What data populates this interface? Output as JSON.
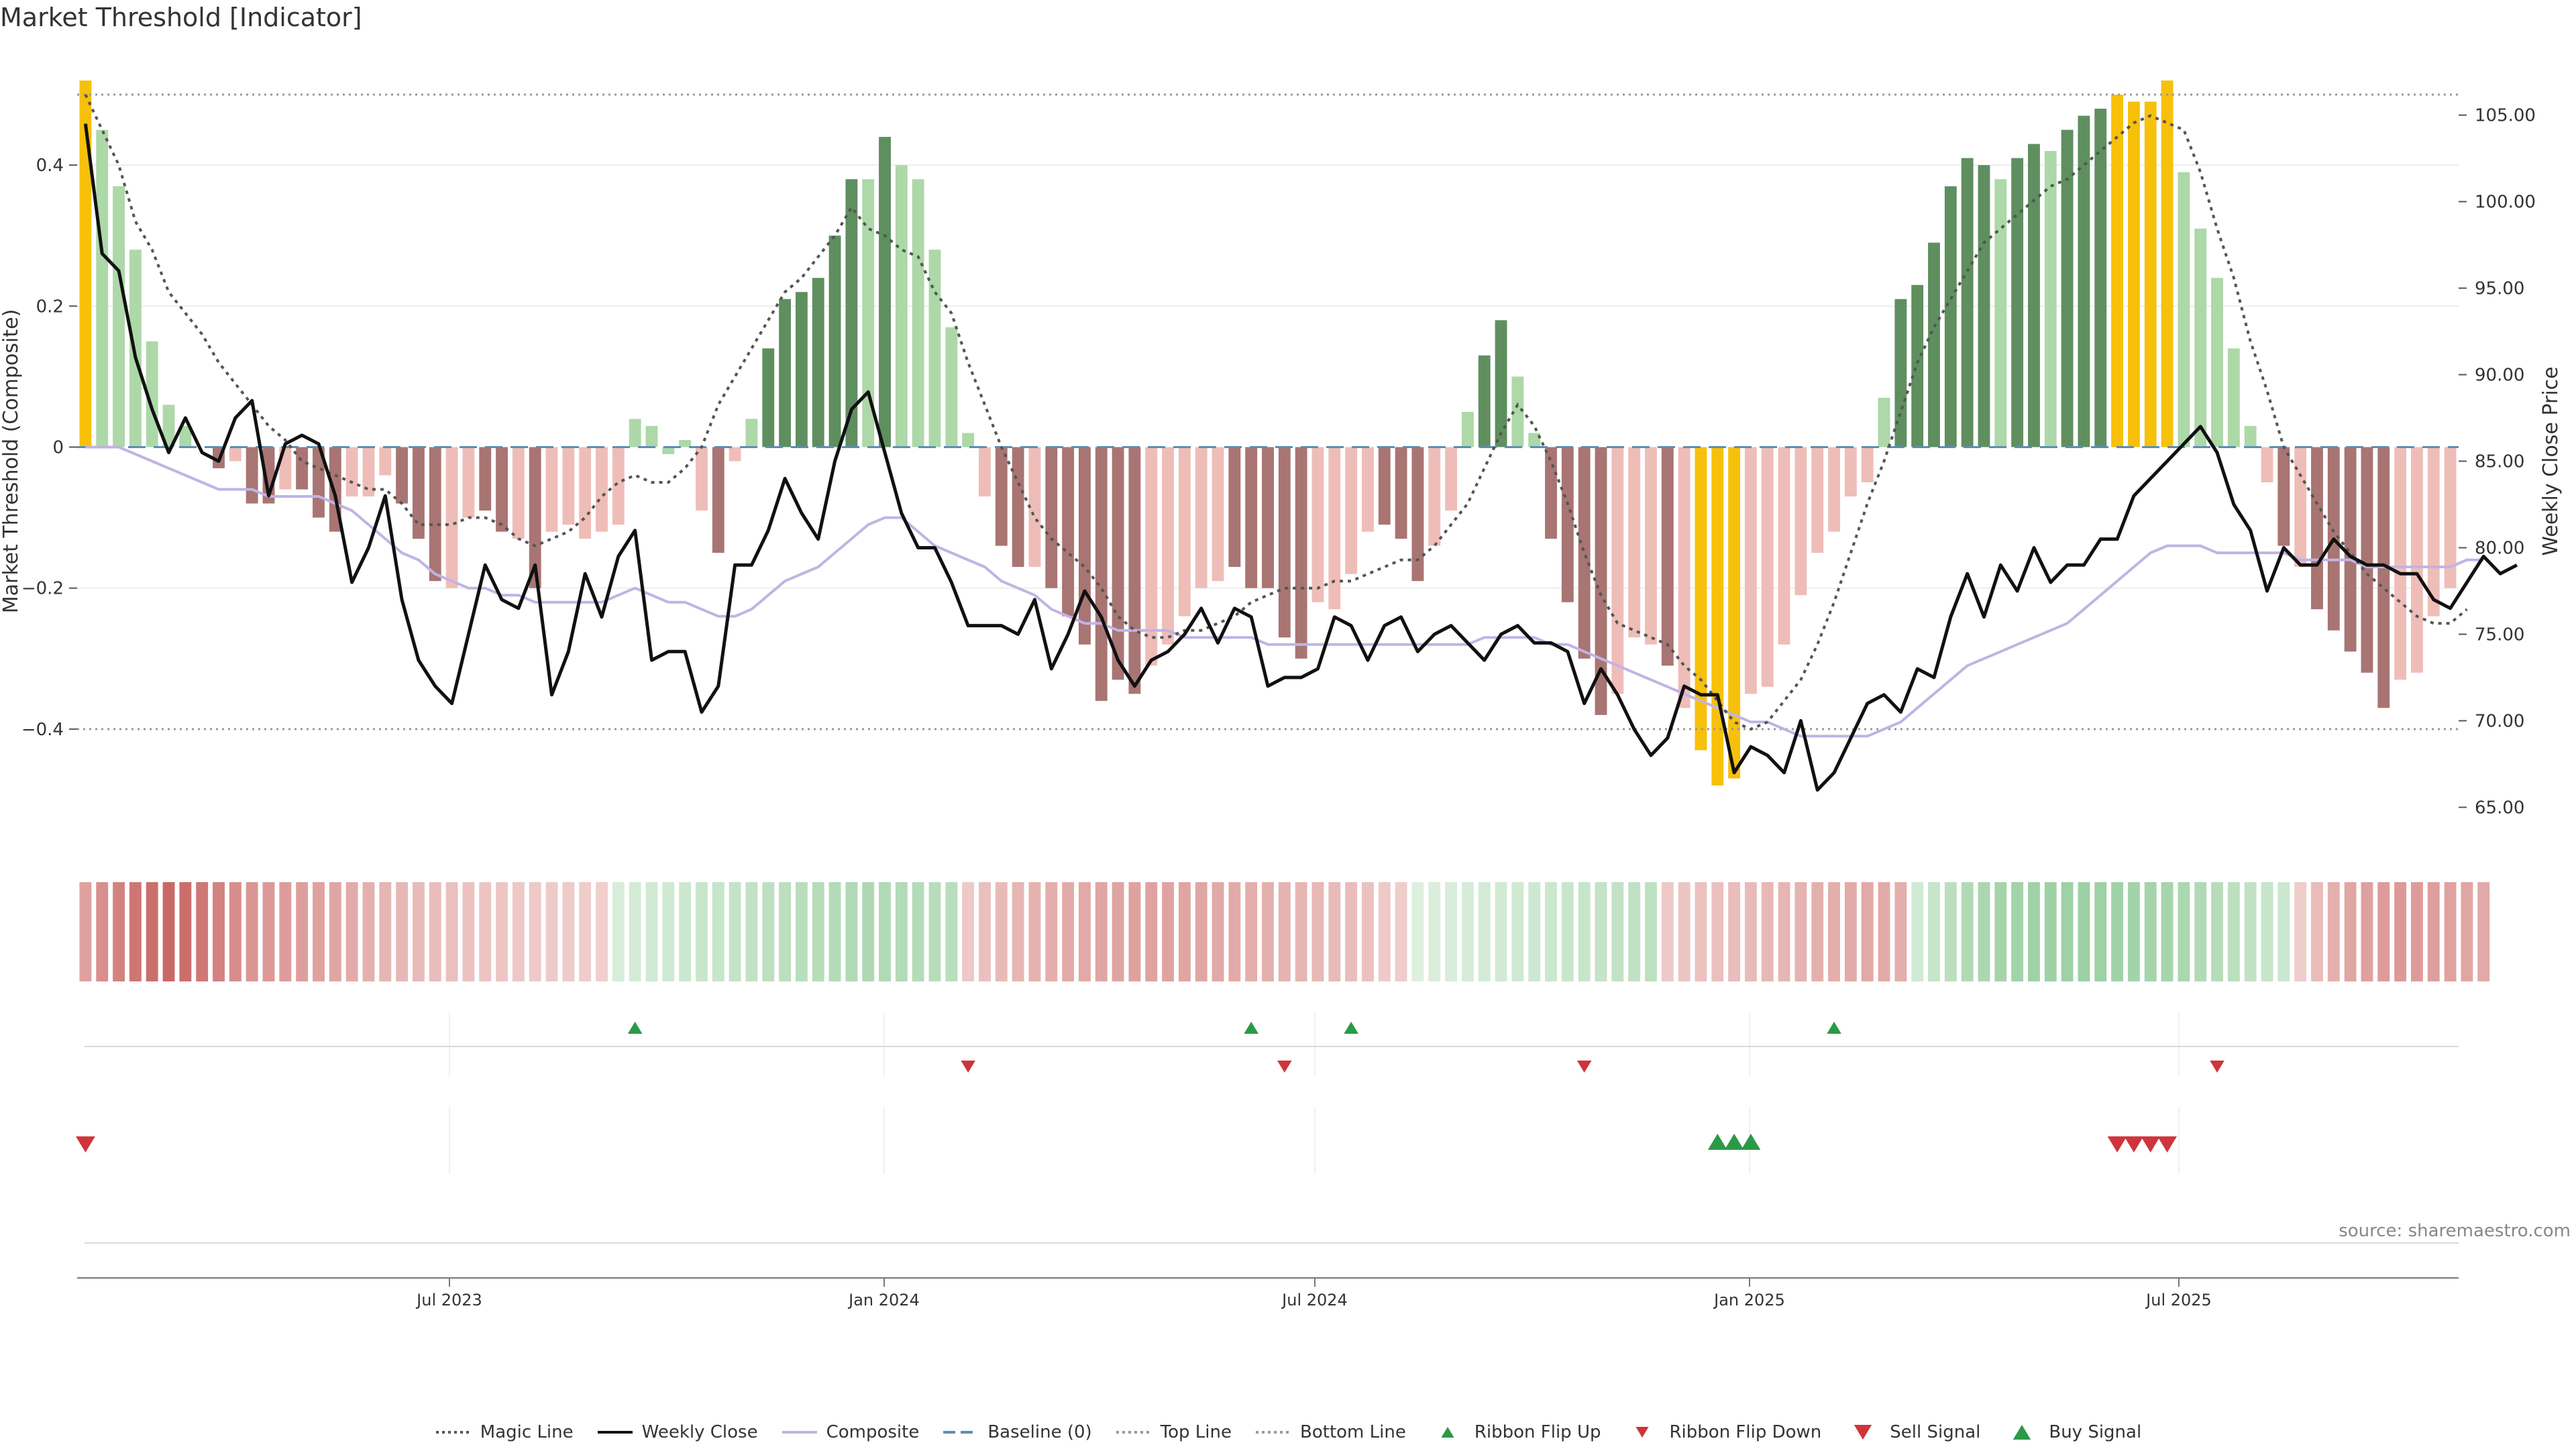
{
  "title": "Market Threshold [Indicator]",
  "source": "source: sharemaestro.com",
  "colors": {
    "bull_strong": "#5f8f5f",
    "bull_light": "#add8a8",
    "bear_strong": "#a87573",
    "bear_light": "#efbdb8",
    "extreme": "#f7c00a",
    "weekly_close": "#111111",
    "composite": "#c1b3e4",
    "magic": "#555555",
    "baseline": "#5a8fb5",
    "threshold_line": "#999999",
    "buy": "#2a9a45",
    "sell": "#d0343b"
  },
  "chart_data": {
    "type": "bar",
    "title": "Market Threshold [Indicator]",
    "ylabel": "Market Threshold (Composite)",
    "y2label": "Weekly Close Price",
    "ylim": [
      -0.56,
      0.52
    ],
    "y2lim": [
      63.0,
      107.0
    ],
    "yticks": [
      "0.4",
      "0.2",
      "0",
      "−0.2",
      "−0.4"
    ],
    "y2ticks": [
      "105.00",
      "100.00",
      "95.00",
      "90.00",
      "85.00",
      "80.00",
      "75.00",
      "70.00",
      "65.00"
    ],
    "xticks": [
      "Jul 2023",
      "Jan 2024",
      "Jul 2024",
      "Jan 2025",
      "Jul 2025"
    ],
    "top_line": 0.5,
    "bottom_line": -0.4,
    "composite_bars": [
      0.52,
      0.45,
      0.37,
      0.28,
      0.15,
      0.06,
      0.03,
      0,
      -0.03,
      -0.02,
      -0.08,
      -0.08,
      -0.06,
      -0.06,
      -0.1,
      -0.12,
      -0.07,
      -0.07,
      -0.04,
      -0.08,
      -0.13,
      -0.19,
      -0.2,
      -0.1,
      -0.09,
      -0.12,
      -0.13,
      -0.2,
      -0.12,
      -0.11,
      -0.13,
      -0.12,
      -0.11,
      0.04,
      0.03,
      -0.01,
      0.01,
      -0.09,
      -0.15,
      -0.02,
      0.04,
      0.14,
      0.21,
      0.22,
      0.24,
      0.3,
      0.38,
      0.38,
      0.44,
      0.4,
      0.38,
      0.28,
      0.17,
      0.02,
      -0.07,
      -0.14,
      -0.17,
      -0.17,
      -0.2,
      -0.24,
      -0.28,
      -0.36,
      -0.33,
      -0.35,
      -0.31,
      -0.28,
      -0.24,
      -0.2,
      -0.19,
      -0.17,
      -0.2,
      -0.2,
      -0.27,
      -0.3,
      -0.22,
      -0.23,
      -0.18,
      -0.12,
      -0.11,
      -0.13,
      -0.19,
      -0.14,
      -0.09,
      0.05,
      0.13,
      0.18,
      0.1,
      0.02,
      -0.13,
      -0.22,
      -0.3,
      -0.38,
      -0.35,
      -0.27,
      -0.28,
      -0.31,
      -0.37,
      -0.43,
      -0.48,
      -0.47,
      -0.35,
      -0.34,
      -0.28,
      -0.21,
      -0.15,
      -0.12,
      -0.07,
      -0.05,
      0.07,
      0.21,
      0.23,
      0.29,
      0.37,
      0.41,
      0.4,
      0.38,
      0.41,
      0.43,
      0.42,
      0.45,
      0.47,
      0.48,
      0.5,
      0.49,
      0.49,
      0.52,
      0.39,
      0.31,
      0.24,
      0.14,
      0.03,
      -0.05,
      -0.14,
      -0.17,
      -0.23,
      -0.26,
      -0.29,
      -0.32,
      -0.37,
      -0.33,
      -0.32,
      -0.24,
      -0.2
    ],
    "bar_class": [
      "e",
      "bl",
      "bl",
      "bl",
      "bl",
      "bl",
      "bl",
      "n",
      "r",
      "rl",
      "r",
      "r",
      "rl",
      "r",
      "r",
      "r",
      "rl",
      "rl",
      "rl",
      "r",
      "r",
      "r",
      "rl",
      "rl",
      "r",
      "r",
      "rl",
      "r",
      "rl",
      "rl",
      "rl",
      "rl",
      "rl",
      "bl",
      "bl",
      "bl",
      "bl",
      "rl",
      "r",
      "rl",
      "bl",
      "b",
      "b",
      "b",
      "b",
      "b",
      "b",
      "bl",
      "b",
      "bl",
      "bl",
      "bl",
      "bl",
      "bl",
      "rl",
      "r",
      "r",
      "rl",
      "r",
      "r",
      "r",
      "r",
      "r",
      "r",
      "rl",
      "rl",
      "rl",
      "rl",
      "rl",
      "r",
      "r",
      "r",
      "r",
      "r",
      "rl",
      "rl",
      "rl",
      "rl",
      "r",
      "r",
      "r",
      "rl",
      "rl",
      "bl",
      "b",
      "b",
      "bl",
      "bl",
      "r",
      "r",
      "r",
      "r",
      "rl",
      "rl",
      "rl",
      "r",
      "rl",
      "e",
      "e",
      "e",
      "rl",
      "rl",
      "rl",
      "rl",
      "rl",
      "rl",
      "rl",
      "rl",
      "bl",
      "b",
      "b",
      "b",
      "b",
      "b",
      "b",
      "bl",
      "b",
      "b",
      "bl",
      "b",
      "b",
      "b",
      "e",
      "e",
      "e",
      "e",
      "bl",
      "bl",
      "bl",
      "bl",
      "bl",
      "rl",
      "r",
      "rl",
      "r",
      "r",
      "r",
      "r",
      "r",
      "rl",
      "rl",
      "rl",
      "rl"
    ],
    "weekly_close": [
      104.5,
      97,
      96,
      91,
      88,
      85.5,
      87.5,
      85.5,
      85,
      87.5,
      88.5,
      83,
      86,
      86.5,
      86,
      83,
      78,
      80,
      83,
      77,
      73.5,
      72,
      71,
      75,
      79,
      77,
      76.5,
      79,
      71.5,
      74,
      78.5,
      76,
      79.5,
      81,
      73.5,
      74,
      74,
      70.5,
      72,
      79,
      79,
      81,
      84,
      82,
      80.5,
      85,
      88,
      89,
      85.5,
      82,
      80,
      80,
      78,
      75.5,
      75.5,
      75.5,
      75,
      77,
      73,
      75,
      77.5,
      76,
      73.5,
      72,
      73.5,
      74,
      75,
      76.5,
      74.5,
      76.5,
      76,
      72,
      72.5,
      72.5,
      73,
      76,
      75.5,
      73.5,
      75.5,
      76,
      74,
      75,
      75.5,
      74.5,
      73.5,
      75,
      75.5,
      74.5,
      74.5,
      74,
      71,
      73,
      71.5,
      69.5,
      68,
      69,
      72,
      71.5,
      71.5,
      67,
      68.5,
      68,
      67,
      70,
      66,
      67,
      69,
      71,
      71.5,
      70.5,
      73,
      72.5,
      76,
      78.5,
      76,
      79,
      77.5,
      80,
      78,
      79,
      79,
      80.5,
      80.5,
      83,
      84,
      85,
      86,
      87,
      85.5,
      82.5,
      81,
      77.5,
      80,
      79,
      79,
      80.5,
      79.5,
      79,
      79,
      78.5,
      78.5,
      77,
      76.5,
      78,
      79.5,
      78.5,
      79
    ]
  },
  "magic_line": [
    0.5,
    0.45,
    0.4,
    0.32,
    0.28,
    0.22,
    0.19,
    0.16,
    0.12,
    0.09,
    0.06,
    0.03,
    0.01,
    -0.02,
    -0.03,
    -0.04,
    -0.05,
    -0.06,
    -0.06,
    -0.08,
    -0.11,
    -0.11,
    -0.11,
    -0.1,
    -0.1,
    -0.11,
    -0.13,
    -0.14,
    -0.13,
    -0.12,
    -0.1,
    -0.07,
    -0.05,
    -0.04,
    -0.05,
    -0.05,
    -0.03,
    0,
    0.06,
    0.1,
    0.14,
    0.18,
    0.22,
    0.24,
    0.27,
    0.3,
    0.34,
    0.31,
    0.3,
    0.28,
    0.27,
    0.22,
    0.19,
    0.12,
    0.06,
    0,
    -0.05,
    -0.1,
    -0.13,
    -0.15,
    -0.17,
    -0.2,
    -0.24,
    -0.26,
    -0.27,
    -0.27,
    -0.26,
    -0.26,
    -0.25,
    -0.24,
    -0.22,
    -0.21,
    -0.2,
    -0.2,
    -0.2,
    -0.19,
    -0.19,
    -0.18,
    -0.17,
    -0.16,
    -0.16,
    -0.14,
    -0.11,
    -0.08,
    -0.03,
    0.02,
    0.06,
    0.03,
    -0.02,
    -0.08,
    -0.15,
    -0.21,
    -0.25,
    -0.26,
    -0.27,
    -0.28,
    -0.31,
    -0.33,
    -0.36,
    -0.39,
    -0.4,
    -0.39,
    -0.36,
    -0.33,
    -0.28,
    -0.22,
    -0.15,
    -0.08,
    -0.02,
    0.05,
    0.12,
    0.17,
    0.21,
    0.25,
    0.29,
    0.31,
    0.33,
    0.35,
    0.37,
    0.38,
    0.4,
    0.42,
    0.44,
    0.46,
    0.47,
    0.46,
    0.45,
    0.39,
    0.31,
    0.24,
    0.15,
    0.08,
    0,
    -0.04,
    -0.08,
    -0.12,
    -0.15,
    -0.18,
    -0.2,
    -0.22,
    -0.24,
    -0.25,
    -0.25,
    -0.23
  ],
  "composite_line": [
    0,
    0,
    0,
    -0.01,
    -0.02,
    -0.03,
    -0.04,
    -0.05,
    -0.06,
    -0.06,
    -0.06,
    -0.07,
    -0.07,
    -0.07,
    -0.07,
    -0.08,
    -0.09,
    -0.11,
    -0.13,
    -0.15,
    -0.16,
    -0.18,
    -0.19,
    -0.2,
    -0.2,
    -0.21,
    -0.21,
    -0.22,
    -0.22,
    -0.22,
    -0.22,
    -0.22,
    -0.21,
    -0.2,
    -0.21,
    -0.22,
    -0.22,
    -0.23,
    -0.24,
    -0.24,
    -0.23,
    -0.21,
    -0.19,
    -0.18,
    -0.17,
    -0.15,
    -0.13,
    -0.11,
    -0.1,
    -0.1,
    -0.12,
    -0.14,
    -0.15,
    -0.16,
    -0.17,
    -0.19,
    -0.2,
    -0.21,
    -0.23,
    -0.24,
    -0.25,
    -0.25,
    -0.26,
    -0.26,
    -0.26,
    -0.26,
    -0.27,
    -0.27,
    -0.27,
    -0.27,
    -0.27,
    -0.28,
    -0.28,
    -0.28,
    -0.28,
    -0.28,
    -0.28,
    -0.28,
    -0.28,
    -0.28,
    -0.28,
    -0.28,
    -0.28,
    -0.28,
    -0.27,
    -0.27,
    -0.27,
    -0.27,
    -0.28,
    -0.28,
    -0.29,
    -0.3,
    -0.31,
    -0.32,
    -0.33,
    -0.34,
    -0.35,
    -0.36,
    -0.37,
    -0.38,
    -0.39,
    -0.39,
    -0.4,
    -0.41,
    -0.41,
    -0.41,
    -0.41,
    -0.41,
    -0.4,
    -0.39,
    -0.37,
    -0.35,
    -0.33,
    -0.31,
    -0.3,
    -0.29,
    -0.28,
    -0.27,
    -0.26,
    -0.25,
    -0.23,
    -0.21,
    -0.19,
    -0.17,
    -0.15,
    -0.14,
    -0.14,
    -0.14,
    -0.15,
    -0.15,
    -0.15,
    -0.15,
    -0.15,
    -0.16,
    -0.16,
    -0.16,
    -0.16,
    -0.17,
    -0.17,
    -0.17,
    -0.17,
    -0.17,
    -0.17,
    -0.16,
    -0.16
  ],
  "ribbon_strength": [
    -0.45,
    -0.6,
    -0.7,
    -0.8,
    -0.85,
    -0.9,
    -0.85,
    -0.78,
    -0.7,
    -0.62,
    -0.55,
    -0.52,
    -0.5,
    -0.48,
    -0.45,
    -0.42,
    -0.38,
    -0.34,
    -0.3,
    -0.28,
    -0.26,
    -0.24,
    -0.22,
    -0.2,
    -0.18,
    -0.17,
    -0.16,
    -0.15,
    -0.14,
    -0.13,
    -0.12,
    -0.1,
    0.15,
    0.18,
    0.2,
    0.22,
    0.25,
    0.28,
    0.3,
    0.32,
    0.35,
    0.38,
    0.4,
    0.42,
    0.45,
    0.47,
    0.5,
    0.52,
    0.5,
    0.48,
    0.46,
    0.44,
    0.42,
    -0.15,
    -0.22,
    -0.26,
    -0.3,
    -0.33,
    -0.36,
    -0.38,
    -0.4,
    -0.42,
    -0.44,
    -0.45,
    -0.45,
    -0.44,
    -0.43,
    -0.42,
    -0.4,
    -0.38,
    -0.36,
    -0.34,
    -0.32,
    -0.3,
    -0.28,
    -0.26,
    -0.24,
    -0.2,
    -0.15,
    -0.12,
    0.1,
    0.12,
    0.14,
    0.16,
    0.18,
    0.2,
    0.22,
    0.24,
    0.26,
    0.28,
    0.3,
    0.32,
    0.34,
    0.36,
    0.38,
    -0.15,
    -0.18,
    -0.2,
    -0.22,
    -0.24,
    -0.26,
    -0.28,
    -0.3,
    -0.32,
    -0.34,
    -0.36,
    -0.38,
    -0.4,
    -0.38,
    -0.36,
    0.2,
    0.3,
    0.4,
    0.5,
    0.55,
    0.6,
    0.62,
    0.64,
    0.65,
    0.66,
    0.67,
    0.66,
    0.64,
    0.62,
    0.6,
    0.58,
    0.55,
    0.5,
    0.45,
    0.4,
    0.35,
    0.3,
    0.25,
    -0.12,
    -0.25,
    -0.35,
    -0.42,
    -0.46,
    -0.5,
    -0.52,
    -0.5,
    -0.48,
    -0.45,
    -0.42,
    -0.4
  ],
  "ribbon_flip_up": [
    33,
    70,
    76,
    105
  ],
  "ribbon_flip_down": [
    53,
    72,
    90,
    128
  ],
  "sell_signals": [
    0,
    122,
    123,
    124,
    125
  ],
  "buy_signals": [
    98,
    99,
    100
  ],
  "legend": [
    {
      "label": "Magic Line",
      "kind": "dotted",
      "color": "#555555"
    },
    {
      "label": "Weekly Close",
      "kind": "solid",
      "color": "#111111"
    },
    {
      "label": "Composite",
      "kind": "solid",
      "color": "#c1b3e4"
    },
    {
      "label": "Baseline (0)",
      "kind": "dashed",
      "color": "#5a8fb5"
    },
    {
      "label": "Top Line",
      "kind": "dotted",
      "color": "#999999"
    },
    {
      "label": "Bottom Line",
      "kind": "dotted",
      "color": "#999999"
    },
    {
      "label": "Ribbon Flip Up",
      "kind": "tri-up-small",
      "color": "#2a9a45"
    },
    {
      "label": "Ribbon Flip Down",
      "kind": "tri-down-small",
      "color": "#d0343b"
    },
    {
      "label": "Sell Signal",
      "kind": "tri-down",
      "color": "#d0343b"
    },
    {
      "label": "Buy Signal",
      "kind": "tri-up",
      "color": "#2a9a45"
    }
  ]
}
